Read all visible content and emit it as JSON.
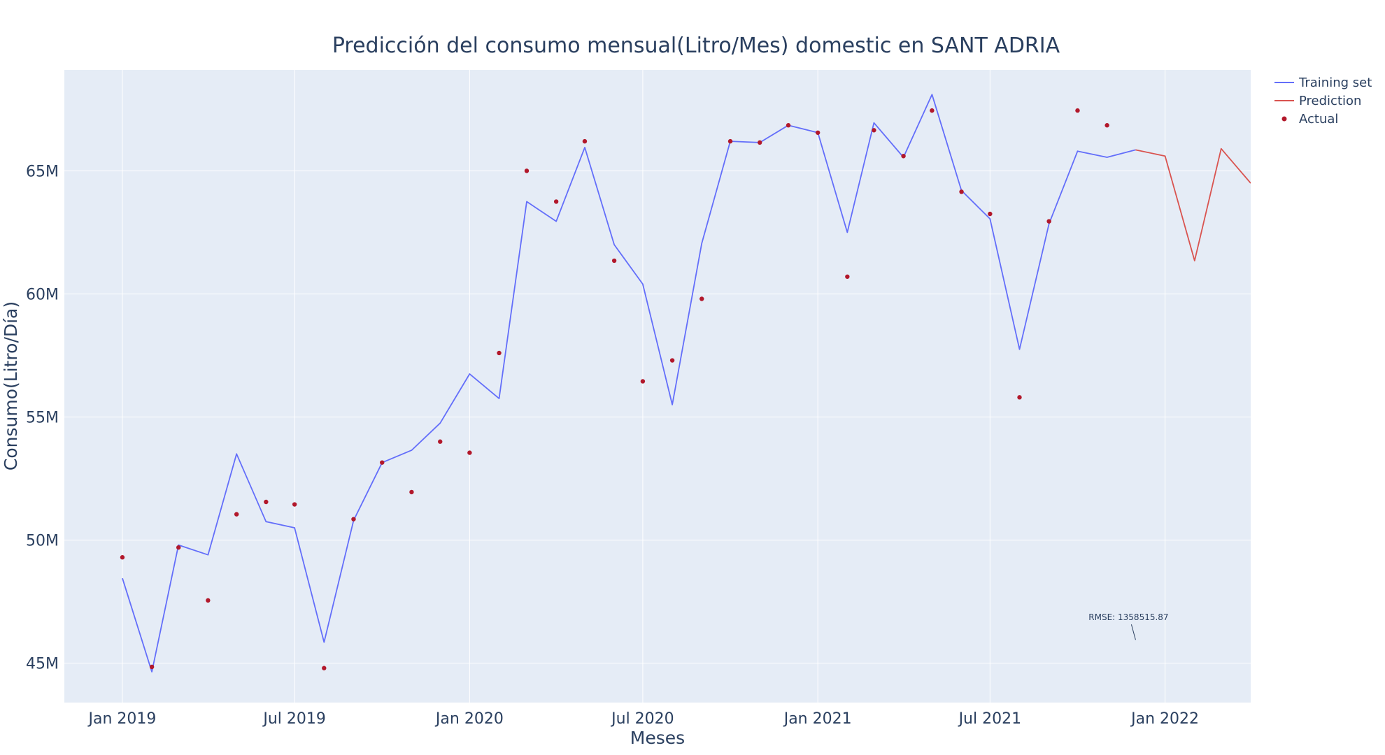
{
  "colors": {
    "plot_bg": "#e5ecf6",
    "grid": "#ffffff",
    "training": "#636efa",
    "prediction": "#d9534f",
    "actual": "#b2182b",
    "text": "#2a3f5f"
  },
  "chart_data": {
    "type": "line",
    "title": "Predicción del consumo mensual(Litro/Mes) domestic en SANT ADRIA",
    "xlabel": "Meses",
    "ylabel": "Consumo(Litro/Día)",
    "x_range": [
      "2018-11-01",
      "2022-04-01"
    ],
    "y_range": [
      43.4,
      69.1
    ],
    "x_ticks": [
      {
        "date": "2019-01-01",
        "label": "Jan 2019"
      },
      {
        "date": "2019-07-01",
        "label": "Jul 2019"
      },
      {
        "date": "2020-01-01",
        "label": "Jan 2020"
      },
      {
        "date": "2020-07-01",
        "label": "Jul 2020"
      },
      {
        "date": "2021-01-01",
        "label": "Jan 2021"
      },
      {
        "date": "2021-07-01",
        "label": "Jul 2021"
      },
      {
        "date": "2022-01-01",
        "label": "Jan 2022"
      }
    ],
    "y_ticks": [
      {
        "value": 45,
        "label": "45M"
      },
      {
        "value": 50,
        "label": "50M"
      },
      {
        "value": 55,
        "label": "55M"
      },
      {
        "value": 60,
        "label": "60M"
      },
      {
        "value": 65,
        "label": "65M"
      }
    ],
    "y_unit": "millions",
    "grid": true,
    "legend_position": "top-right",
    "series": [
      {
        "name": "Training set",
        "style": "line",
        "points": [
          [
            "2019-01-01",
            48.45
          ],
          [
            "2019-02-01",
            44.65
          ],
          [
            "2019-03-01",
            49.8
          ],
          [
            "2019-04-01",
            49.4
          ],
          [
            "2019-05-01",
            53.5
          ],
          [
            "2019-06-01",
            50.75
          ],
          [
            "2019-07-01",
            50.5
          ],
          [
            "2019-08-01",
            45.85
          ],
          [
            "2019-09-01",
            50.8
          ],
          [
            "2019-10-01",
            53.15
          ],
          [
            "2019-11-01",
            53.65
          ],
          [
            "2019-12-01",
            54.75
          ],
          [
            "2020-01-01",
            56.75
          ],
          [
            "2020-02-01",
            55.75
          ],
          [
            "2020-03-01",
            63.75
          ],
          [
            "2020-04-01",
            62.95
          ],
          [
            "2020-05-01",
            65.95
          ],
          [
            "2020-06-01",
            62.0
          ],
          [
            "2020-07-01",
            60.4
          ],
          [
            "2020-08-01",
            55.5
          ],
          [
            "2020-09-01",
            62.05
          ],
          [
            "2020-10-01",
            66.2
          ],
          [
            "2020-11-01",
            66.15
          ],
          [
            "2020-12-01",
            66.85
          ],
          [
            "2021-01-01",
            66.55
          ],
          [
            "2021-02-01",
            62.5
          ],
          [
            "2021-03-01",
            66.95
          ],
          [
            "2021-04-01",
            65.55
          ],
          [
            "2021-05-01",
            68.1
          ],
          [
            "2021-06-01",
            64.2
          ],
          [
            "2021-07-01",
            63.05
          ],
          [
            "2021-08-01",
            57.75
          ],
          [
            "2021-09-01",
            62.85
          ],
          [
            "2021-10-01",
            65.8
          ],
          [
            "2021-11-01",
            65.55
          ],
          [
            "2021-12-01",
            65.85
          ]
        ]
      },
      {
        "name": "Prediction",
        "style": "line",
        "points": [
          [
            "2021-12-01",
            65.85
          ],
          [
            "2022-01-01",
            65.6
          ],
          [
            "2022-02-01",
            61.35
          ],
          [
            "2022-03-01",
            65.9
          ],
          [
            "2022-04-01",
            64.5
          ]
        ]
      },
      {
        "name": "Actual",
        "style": "markers",
        "points": [
          [
            "2019-01-01",
            49.3
          ],
          [
            "2019-02-01",
            44.85
          ],
          [
            "2019-03-01",
            49.7
          ],
          [
            "2019-04-01",
            47.55
          ],
          [
            "2019-05-01",
            51.05
          ],
          [
            "2019-06-01",
            51.55
          ],
          [
            "2019-07-01",
            51.45
          ],
          [
            "2019-08-01",
            44.8
          ],
          [
            "2019-09-01",
            50.85
          ],
          [
            "2019-10-01",
            53.15
          ],
          [
            "2019-11-01",
            51.95
          ],
          [
            "2019-12-01",
            54.0
          ],
          [
            "2020-01-01",
            53.55
          ],
          [
            "2020-02-01",
            57.6
          ],
          [
            "2020-03-01",
            65.0
          ],
          [
            "2020-04-01",
            63.75
          ],
          [
            "2020-05-01",
            66.2
          ],
          [
            "2020-06-01",
            61.35
          ],
          [
            "2020-07-01",
            56.45
          ],
          [
            "2020-08-01",
            57.3
          ],
          [
            "2020-09-01",
            59.8
          ],
          [
            "2020-10-01",
            66.2
          ],
          [
            "2020-11-01",
            66.15
          ],
          [
            "2020-12-01",
            66.85
          ],
          [
            "2021-01-01",
            66.55
          ],
          [
            "2021-02-01",
            60.7
          ],
          [
            "2021-03-01",
            66.65
          ],
          [
            "2021-04-01",
            65.6
          ],
          [
            "2021-05-01",
            67.45
          ],
          [
            "2021-06-01",
            64.15
          ],
          [
            "2021-07-01",
            63.25
          ],
          [
            "2021-08-01",
            55.8
          ],
          [
            "2021-09-01",
            62.95
          ],
          [
            "2021-10-01",
            67.45
          ],
          [
            "2021-11-01",
            66.85
          ]
        ]
      }
    ],
    "annotations": [
      {
        "text": "RMSE: 1358515.87",
        "date": "2021-12-01",
        "value": 45.95
      }
    ]
  }
}
